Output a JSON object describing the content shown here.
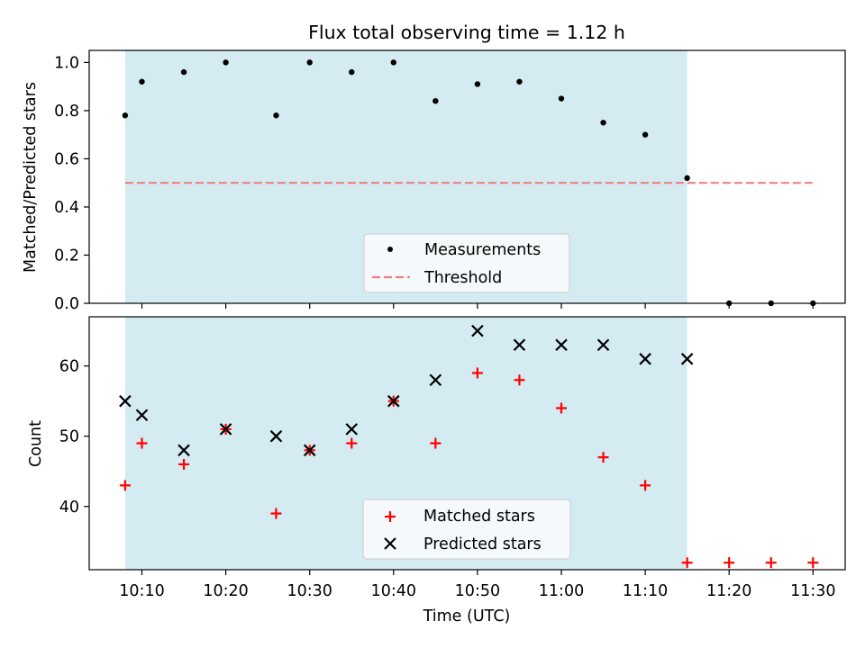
{
  "chart_data": [
    {
      "type": "scatter",
      "title": "Flux total observing time = 1.12 h",
      "ylabel": "Matched/Predicted stars",
      "xlabel": "",
      "ylim": [
        0,
        1.05
      ],
      "yticks": [
        "0.0",
        "0.2",
        "0.4",
        "0.6",
        "0.8",
        "1.0"
      ],
      "observing_window": [
        "10:08",
        "11:15"
      ],
      "series": [
        {
          "name": "Measurements",
          "marker": "dot",
          "color": "#000000",
          "x": [
            "10:08",
            "10:10",
            "10:15",
            "10:20",
            "10:26",
            "10:30",
            "10:35",
            "10:40",
            "10:45",
            "10:50",
            "10:55",
            "11:00",
            "11:05",
            "11:10",
            "11:15",
            "11:20",
            "11:25",
            "11:30"
          ],
          "values": [
            0.78,
            0.92,
            0.96,
            1.0,
            0.78,
            1.0,
            0.96,
            1.0,
            0.84,
            0.91,
            0.92,
            0.85,
            0.75,
            0.7,
            0.52,
            0.0,
            0.0,
            0.0
          ]
        },
        {
          "name": "Threshold",
          "marker": "dashed-line",
          "color": "#f08080",
          "x": [
            "10:08",
            "11:30"
          ],
          "values": [
            0.5,
            0.5
          ]
        }
      ],
      "legend": "bottom-center"
    },
    {
      "type": "scatter",
      "title": "",
      "ylabel": "Count",
      "xlabel": "Time (UTC)",
      "ylim": [
        31,
        67
      ],
      "yticks": [
        "40",
        "50",
        "60"
      ],
      "xticks": [
        "10:10",
        "10:20",
        "10:30",
        "10:40",
        "10:50",
        "11:00",
        "11:10",
        "11:20",
        "11:30"
      ],
      "observing_window": [
        "10:08",
        "11:15"
      ],
      "series": [
        {
          "name": "Matched stars",
          "marker": "plus",
          "color": "#ff0000",
          "x": [
            "10:08",
            "10:10",
            "10:15",
            "10:20",
            "10:26",
            "10:30",
            "10:35",
            "10:40",
            "10:45",
            "10:50",
            "10:55",
            "11:00",
            "11:05",
            "11:10",
            "11:15",
            "11:20",
            "11:25",
            "11:30"
          ],
          "values": [
            43,
            49,
            46,
            51,
            39,
            48,
            49,
            55,
            49,
            59,
            58,
            54,
            47,
            43,
            32,
            32,
            32,
            32
          ]
        },
        {
          "name": "Predicted stars",
          "marker": "x",
          "color": "#000000",
          "x": [
            "10:08",
            "10:10",
            "10:15",
            "10:20",
            "10:26",
            "10:30",
            "10:35",
            "10:40",
            "10:45",
            "10:50",
            "10:55",
            "11:00",
            "11:05",
            "11:10",
            "11:15"
          ],
          "values": [
            55,
            53,
            48,
            51,
            50,
            48,
            51,
            55,
            58,
            65,
            63,
            63,
            63,
            61,
            61
          ]
        }
      ],
      "legend": "bottom-center"
    }
  ],
  "colors": {
    "window_fill": "#add8e6",
    "threshold": "#f08080",
    "matched": "#ff0000",
    "predicted": "#000000"
  }
}
